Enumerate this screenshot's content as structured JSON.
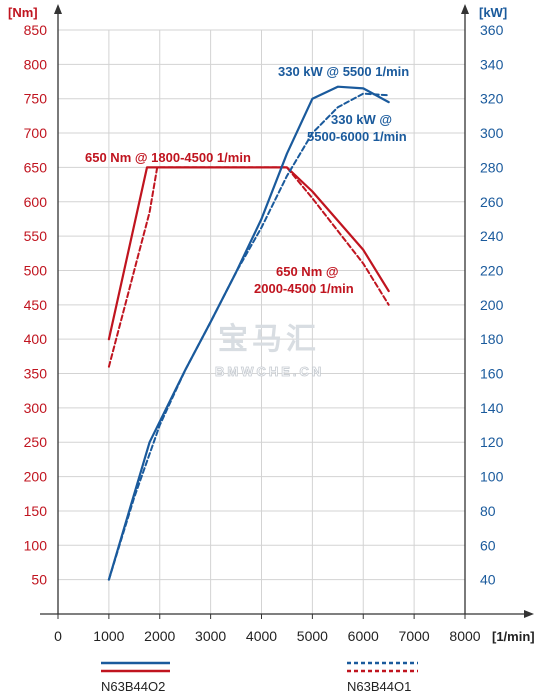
{
  "chart_data": {
    "type": "line",
    "x_unit": "[1/min]",
    "xlim": [
      0,
      8000
    ],
    "x_ticks": [
      "0",
      "1000",
      "2000",
      "3000",
      "4000",
      "5000",
      "6000",
      "7000",
      "8000"
    ],
    "y_left": {
      "unit": "[Nm]",
      "ylim": [
        0,
        850
      ],
      "ticks": [
        "50",
        "100",
        "150",
        "200",
        "250",
        "300",
        "350",
        "400",
        "450",
        "500",
        "550",
        "600",
        "650",
        "700",
        "750",
        "800",
        "850"
      ]
    },
    "y_right": {
      "unit": "[kW]",
      "ylim": [
        20,
        360
      ],
      "ticks": [
        "40",
        "60",
        "80",
        "100",
        "120",
        "140",
        "160",
        "180",
        "200",
        "220",
        "240",
        "260",
        "280",
        "300",
        "320",
        "340",
        "360"
      ]
    },
    "grid": true,
    "series": [
      {
        "name": "N63B44O2",
        "quantity": "torque",
        "axis": "left",
        "style": "solid",
        "color": "#c0141f",
        "x": [
          1000,
          1750,
          4500,
          5000,
          6000,
          6500
        ],
        "y": [
          400,
          650,
          650,
          615,
          530,
          470
        ]
      },
      {
        "name": "N63B44O1",
        "quantity": "torque",
        "axis": "left",
        "style": "dashed",
        "color": "#c0141f",
        "x": [
          1000,
          1800,
          1950,
          4500,
          5000,
          6000,
          6500
        ],
        "y": [
          360,
          585,
          650,
          650,
          605,
          510,
          450
        ]
      },
      {
        "name": "N63B44O2",
        "quantity": "power",
        "axis": "right",
        "style": "solid",
        "color": "#1a5a9c",
        "x": [
          1000,
          1400,
          1800,
          2500,
          3000,
          3500,
          4000,
          4500,
          5000,
          5500,
          6000,
          6500
        ],
        "y": [
          40,
          80,
          120,
          162,
          190,
          219,
          250,
          288,
          320,
          327,
          326,
          318
        ]
      },
      {
        "name": "N63B44O1",
        "quantity": "power",
        "axis": "right",
        "style": "dashed",
        "color": "#1a5a9c",
        "x": [
          1000,
          1500,
          2000,
          2500,
          3000,
          3500,
          4000,
          4500,
          5000,
          5500,
          6000,
          6500
        ],
        "y": [
          40,
          88,
          130,
          162,
          190,
          219,
          245,
          275,
          300,
          315,
          323,
          322
        ]
      }
    ],
    "annotations": [
      {
        "text": "330 kW @ 5500 1/min",
        "color": "#1a5a9c"
      },
      {
        "text_lines": [
          "330 kW @",
          "5500-6000 1/min"
        ],
        "color": "#1a5a9c"
      },
      {
        "text": "650 Nm @ 1800-4500 1/min",
        "color": "#c0141f"
      },
      {
        "text_lines": [
          "650 Nm @",
          "2000-4500 1/min"
        ],
        "color": "#c0141f"
      }
    ],
    "legend": [
      {
        "label": "N63B44O2",
        "style": "solid"
      },
      {
        "label": "N63B44O1",
        "style": "dashed"
      }
    ]
  },
  "watermark": {
    "main": "宝马汇",
    "sub": "BMWCHE.CN"
  }
}
